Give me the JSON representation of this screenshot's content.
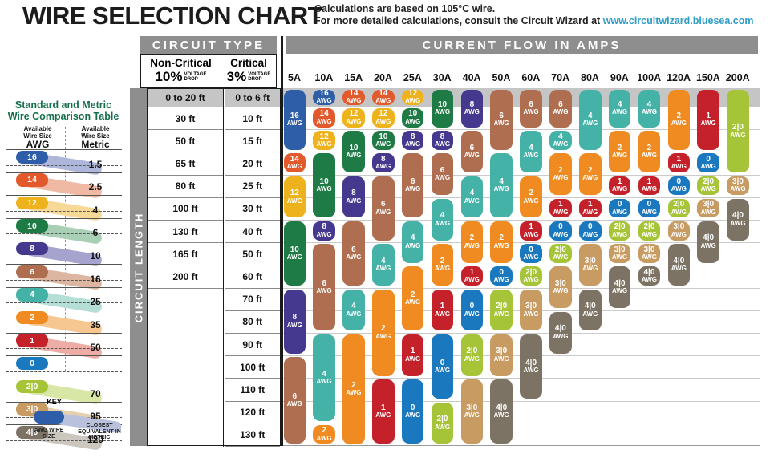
{
  "header": {
    "title": "WIRE SELECTION CHART",
    "subtitle_line1": "Calculations are based on 105°C wire.",
    "subtitle_line2_prefix": "For more detailed calculations, consult the Circuit Wizard at ",
    "subtitle_link": "www.circuitwizard.bluesea.com"
  },
  "sidebar": {
    "title_line1": "Standard and Metric",
    "title_line2": "Wire Comparison Table",
    "col1_header_line1": "Available",
    "col1_header_line2": "Wire Size",
    "col1_unit": "AWG",
    "col2_header_line1": "Available",
    "col2_header_line2": "Wire Size",
    "col2_unit": "Metric",
    "rows": [
      {
        "awg": "16",
        "metric": "1.5"
      },
      {
        "awg": "14",
        "metric": "2.5"
      },
      {
        "awg": "12",
        "metric": "4"
      },
      {
        "awg": "10",
        "metric": "6"
      },
      {
        "awg": "8",
        "metric": "10"
      },
      {
        "awg": "6",
        "metric": "16"
      },
      {
        "awg": "4",
        "metric": "25"
      },
      {
        "awg": "2",
        "metric": "35"
      },
      {
        "awg": "1",
        "metric": "50"
      },
      {
        "awg": "0",
        "metric": ""
      },
      {
        "awg": "2|0",
        "metric": "70"
      },
      {
        "awg": "3|0",
        "metric": "95"
      },
      {
        "awg": "4|0",
        "metric": "120"
      }
    ],
    "key": {
      "title": "KEY",
      "left_caption": "AWG WIRE SIZE",
      "right_caption": "CLOSEST EQUIVALENT IN METRIC"
    }
  },
  "table": {
    "circuit_type_header": "CIRCUIT TYPE",
    "amps_header": "CURRENT FLOW IN AMPS",
    "noncritical": {
      "title": "Non-Critical",
      "pct": "10%",
      "drop_word1": "VOLTAGE",
      "drop_word2": "DROP"
    },
    "critical": {
      "title": "Critical",
      "pct": "3%",
      "drop_word1": "VOLTAGE",
      "drop_word2": "DROP"
    },
    "circuit_length_label": "CIRCUIT LENGTH"
  },
  "chart_data": {
    "type": "table",
    "title": "WIRE SELECTION CHART",
    "x_axis": "Current Flow in Amps",
    "y_axis": "Circuit Length",
    "unit": "AWG",
    "amp_columns": [
      "5A",
      "10A",
      "15A",
      "20A",
      "25A",
      "30A",
      "40A",
      "50A",
      "60A",
      "70A",
      "80A",
      "90A",
      "100A",
      "120A",
      "150A",
      "200A"
    ],
    "noncritical_lengths": [
      "0 to 20 ft",
      "30 ft",
      "50 ft",
      "65 ft",
      "80 ft",
      "100 ft",
      "130 ft",
      "165 ft",
      "200 ft"
    ],
    "critical_lengths": [
      "0 to 6 ft",
      "10 ft",
      "15 ft",
      "20 ft",
      "25 ft",
      "30 ft",
      "40 ft",
      "50 ft",
      "60 ft",
      "70 ft",
      "80 ft",
      "90 ft",
      "100 ft",
      "110 ft",
      "120 ft",
      "130 ft"
    ],
    "columns": [
      {
        "amp": "5A",
        "pills": [
          {
            "awg": "16",
            "row": 1,
            "span": 3
          },
          {
            "awg": "14",
            "row": 4,
            "span": 1
          },
          {
            "awg": "12",
            "row": 5,
            "span": 2
          },
          {
            "awg": "10",
            "row": 7,
            "span": 3
          },
          {
            "awg": "8",
            "row": 10,
            "span": 3
          },
          {
            "awg": "6",
            "row": 13,
            "span": 4
          }
        ]
      },
      {
        "amp": "10A",
        "pills": [
          {
            "awg": "16",
            "row": 1,
            "span": 1
          },
          {
            "awg": "14",
            "row": 2,
            "span": 1
          },
          {
            "awg": "12",
            "row": 3,
            "span": 1
          },
          {
            "awg": "10",
            "row": 4,
            "span": 3
          },
          {
            "awg": "8",
            "row": 7,
            "span": 1
          },
          {
            "awg": "6",
            "row": 8,
            "span": 4
          },
          {
            "awg": "4",
            "row": 12,
            "span": 4
          },
          {
            "awg": "2",
            "row": 16,
            "span": 1
          }
        ]
      },
      {
        "amp": "15A",
        "pills": [
          {
            "awg": "14",
            "row": 1,
            "span": 1
          },
          {
            "awg": "12",
            "row": 2,
            "span": 1
          },
          {
            "awg": "10",
            "row": 3,
            "span": 2
          },
          {
            "awg": "8",
            "row": 5,
            "span": 2
          },
          {
            "awg": "6",
            "row": 7,
            "span": 3
          },
          {
            "awg": "4",
            "row": 10,
            "span": 2
          },
          {
            "awg": "2",
            "row": 12,
            "span": 5
          }
        ]
      },
      {
        "amp": "20A",
        "pills": [
          {
            "awg": "14",
            "row": 1,
            "span": 1
          },
          {
            "awg": "12",
            "row": 2,
            "span": 1
          },
          {
            "awg": "10",
            "row": 3,
            "span": 1
          },
          {
            "awg": "8",
            "row": 4,
            "span": 1
          },
          {
            "awg": "6",
            "row": 5,
            "span": 3
          },
          {
            "awg": "4",
            "row": 8,
            "span": 2
          },
          {
            "awg": "2",
            "row": 10,
            "span": 4
          },
          {
            "awg": "1",
            "row": 14,
            "span": 3
          }
        ]
      },
      {
        "amp": "25A",
        "pills": [
          {
            "awg": "12",
            "row": 1,
            "span": 1
          },
          {
            "awg": "10",
            "row": 2,
            "span": 1
          },
          {
            "awg": "8",
            "row": 3,
            "span": 1
          },
          {
            "awg": "6",
            "row": 4,
            "span": 3
          },
          {
            "awg": "4",
            "row": 7,
            "span": 2
          },
          {
            "awg": "2",
            "row": 9,
            "span": 3
          },
          {
            "awg": "1",
            "row": 12,
            "span": 2
          },
          {
            "awg": "0",
            "row": 14,
            "span": 3
          }
        ]
      },
      {
        "amp": "30A",
        "pills": [
          {
            "awg": "10",
            "row": 1,
            "span": 2
          },
          {
            "awg": "8",
            "row": 3,
            "span": 1
          },
          {
            "awg": "6",
            "row": 4,
            "span": 2
          },
          {
            "awg": "4",
            "row": 6,
            "span": 2
          },
          {
            "awg": "2",
            "row": 8,
            "span": 2
          },
          {
            "awg": "1",
            "row": 10,
            "span": 2
          },
          {
            "awg": "0",
            "row": 12,
            "span": 3
          },
          {
            "awg": "2|0",
            "row": 15,
            "span": 2
          }
        ]
      },
      {
        "amp": "40A",
        "pills": [
          {
            "awg": "8",
            "row": 1,
            "span": 2
          },
          {
            "awg": "6",
            "row": 3,
            "span": 2
          },
          {
            "awg": "4",
            "row": 5,
            "span": 2
          },
          {
            "awg": "2",
            "row": 7,
            "span": 2
          },
          {
            "awg": "1",
            "row": 9,
            "span": 1
          },
          {
            "awg": "0",
            "row": 10,
            "span": 2
          },
          {
            "awg": "2|0",
            "row": 12,
            "span": 2
          },
          {
            "awg": "3|0",
            "row": 14,
            "span": 3
          }
        ]
      },
      {
        "amp": "50A",
        "pills": [
          {
            "awg": "6",
            "row": 1,
            "span": 3
          },
          {
            "awg": "4",
            "row": 4,
            "span": 3
          },
          {
            "awg": "2",
            "row": 7,
            "span": 2
          },
          {
            "awg": "0",
            "row": 9,
            "span": 1
          },
          {
            "awg": "2|0",
            "row": 10,
            "span": 2
          },
          {
            "awg": "3|0",
            "row": 12,
            "span": 2
          },
          {
            "awg": "4|0",
            "row": 14,
            "span": 3
          }
        ]
      },
      {
        "amp": "60A",
        "pills": [
          {
            "awg": "6",
            "row": 1,
            "span": 2
          },
          {
            "awg": "4",
            "row": 3,
            "span": 2
          },
          {
            "awg": "2",
            "row": 5,
            "span": 2
          },
          {
            "awg": "1",
            "row": 7,
            "span": 1
          },
          {
            "awg": "0",
            "row": 8,
            "span": 1
          },
          {
            "awg": "2|0",
            "row": 9,
            "span": 1
          },
          {
            "awg": "3|0",
            "row": 10,
            "span": 2
          },
          {
            "awg": "4|0",
            "row": 12,
            "span": 3
          }
        ]
      },
      {
        "amp": "70A",
        "pills": [
          {
            "awg": "6",
            "row": 1,
            "span": 2
          },
          {
            "awg": "4",
            "row": 3,
            "span": 1
          },
          {
            "awg": "2",
            "row": 4,
            "span": 2
          },
          {
            "awg": "1",
            "row": 6,
            "span": 1
          },
          {
            "awg": "0",
            "row": 7,
            "span": 1
          },
          {
            "awg": "2|0",
            "row": 8,
            "span": 1
          },
          {
            "awg": "3|0",
            "row": 9,
            "span": 2
          },
          {
            "awg": "4|0",
            "row": 11,
            "span": 2
          }
        ]
      },
      {
        "amp": "80A",
        "pills": [
          {
            "awg": "4",
            "row": 1,
            "span": 3
          },
          {
            "awg": "2",
            "row": 4,
            "span": 2
          },
          {
            "awg": "1",
            "row": 6,
            "span": 1
          },
          {
            "awg": "0",
            "row": 7,
            "span": 1
          },
          {
            "awg": "3|0",
            "row": 8,
            "span": 2
          },
          {
            "awg": "4|0",
            "row": 10,
            "span": 2
          }
        ]
      },
      {
        "amp": "90A",
        "pills": [
          {
            "awg": "4",
            "row": 1,
            "span": 2
          },
          {
            "awg": "2",
            "row": 3,
            "span": 2
          },
          {
            "awg": "1",
            "row": 5,
            "span": 1
          },
          {
            "awg": "0",
            "row": 6,
            "span": 1
          },
          {
            "awg": "2|0",
            "row": 7,
            "span": 1
          },
          {
            "awg": "3|0",
            "row": 8,
            "span": 1
          },
          {
            "awg": "4|0",
            "row": 9,
            "span": 2
          }
        ]
      },
      {
        "amp": "100A",
        "pills": [
          {
            "awg": "4",
            "row": 1,
            "span": 2
          },
          {
            "awg": "2",
            "row": 3,
            "span": 2
          },
          {
            "awg": "1",
            "row": 5,
            "span": 1
          },
          {
            "awg": "0",
            "row": 6,
            "span": 1
          },
          {
            "awg": "2|0",
            "row": 7,
            "span": 1
          },
          {
            "awg": "3|0",
            "row": 8,
            "span": 1
          },
          {
            "awg": "4|0",
            "row": 9,
            "span": 1
          }
        ]
      },
      {
        "amp": "120A",
        "pills": [
          {
            "awg": "2",
            "row": 1,
            "span": 3
          },
          {
            "awg": "1",
            "row": 4,
            "span": 1
          },
          {
            "awg": "0",
            "row": 5,
            "span": 1
          },
          {
            "awg": "2|0",
            "row": 6,
            "span": 1
          },
          {
            "awg": "3|0",
            "row": 7,
            "span": 1
          },
          {
            "awg": "4|0",
            "row": 8,
            "span": 2
          }
        ]
      },
      {
        "amp": "150A",
        "pills": [
          {
            "awg": "1",
            "row": 1,
            "span": 3
          },
          {
            "awg": "0",
            "row": 4,
            "span": 1
          },
          {
            "awg": "2|0",
            "row": 5,
            "span": 1
          },
          {
            "awg": "3|0",
            "row": 6,
            "span": 1
          },
          {
            "awg": "4|0",
            "row": 7,
            "span": 2
          }
        ]
      },
      {
        "amp": "200A",
        "pills": [
          {
            "awg": "2|0",
            "row": 1,
            "span": 4
          },
          {
            "awg": "3|0",
            "row": 5,
            "span": 1
          },
          {
            "awg": "4|0",
            "row": 6,
            "span": 2
          }
        ]
      }
    ]
  },
  "colors": {
    "16": {
      "bg": "#2f5ea8",
      "light": "#aeb7da"
    },
    "14": {
      "bg": "#e2592c",
      "light": "#f0b9a4"
    },
    "12": {
      "bg": "#eeb21c",
      "light": "#f6d996"
    },
    "10": {
      "bg": "#1e7b46",
      "light": "#a9cfb6"
    },
    "8": {
      "bg": "#45388f",
      "light": "#a7a3cf"
    },
    "6": {
      "bg": "#b06e50",
      "light": "#ddb6a2"
    },
    "4": {
      "bg": "#45b2a7",
      "light": "#b5ded7"
    },
    "2": {
      "bg": "#ef8b20",
      "light": "#f7c791"
    },
    "1": {
      "bg": "#c5212b",
      "light": "#edaca6"
    },
    "0": {
      "bg": "#1a78be",
      "light": "#a8c9e8"
    },
    "2|0": {
      "bg": "#a6c437",
      "light": "#d8e6a6"
    },
    "3|0": {
      "bg": "#c79b61",
      "light": "#e6cfab"
    },
    "4|0": {
      "bg": "#7c7365",
      "light": "#ccc7be"
    },
    "key_pill": "#2f5ea8",
    "key_swoosh": "#b9c1dd",
    "link": "#2f9dc4",
    "header_bar": "#8e8e8e",
    "row_band": "#c5c5c6"
  }
}
